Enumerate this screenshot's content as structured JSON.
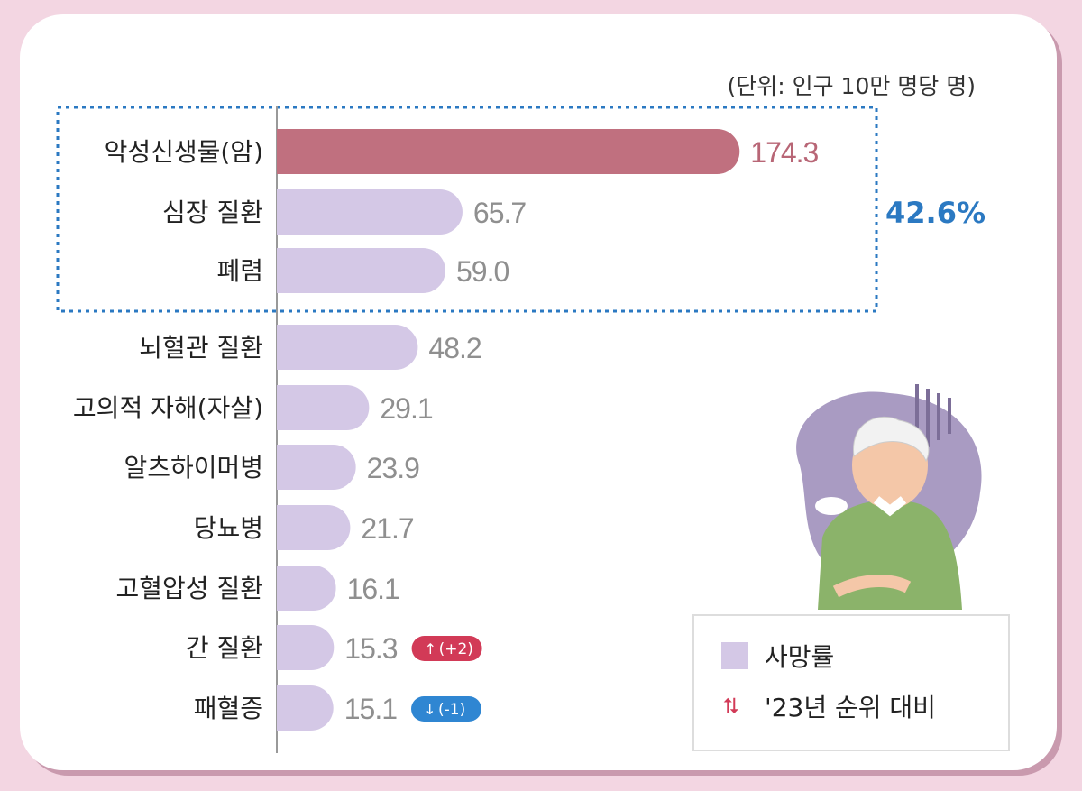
{
  "unit_note": "(단위: 인구 10만 명당 명)",
  "highlight_share": "42.6%",
  "colors": {
    "top_bar": "#c0707f",
    "bar": "#d4c8e6",
    "top_label": "#b86676",
    "label": "#8f8f8f",
    "highlight": "#2b79c2",
    "up_badge": "#d23a57",
    "down_badge": "#2f86d2"
  },
  "legend": {
    "rate": "사망률",
    "rank_change": "'23년 순위 대비"
  },
  "chart_data": {
    "type": "bar",
    "orientation": "horizontal",
    "categories": [
      "악성신생물(암)",
      "심장 질환",
      "폐렴",
      "뇌혈관 질환",
      "고의적 자해(자살)",
      "알츠하이머병",
      "당뇨병",
      "고혈압성 질환",
      "간 질환",
      "패혈증"
    ],
    "values": [
      174.3,
      65.7,
      59.0,
      48.2,
      29.1,
      23.9,
      21.7,
      16.1,
      15.3,
      15.1
    ],
    "value_labels": [
      "174.3",
      "65.7",
      "59.0",
      "48.2",
      "29.1",
      "23.9",
      "21.7",
      "16.1",
      "15.3",
      "15.1"
    ],
    "rank_change": [
      null,
      null,
      null,
      null,
      null,
      null,
      null,
      null,
      "(+2)",
      "(-1)"
    ],
    "highlighted_group": [
      "악성신생물(암)",
      "심장 질환",
      "폐렴"
    ],
    "unit": "인구 10만 명당 명"
  }
}
